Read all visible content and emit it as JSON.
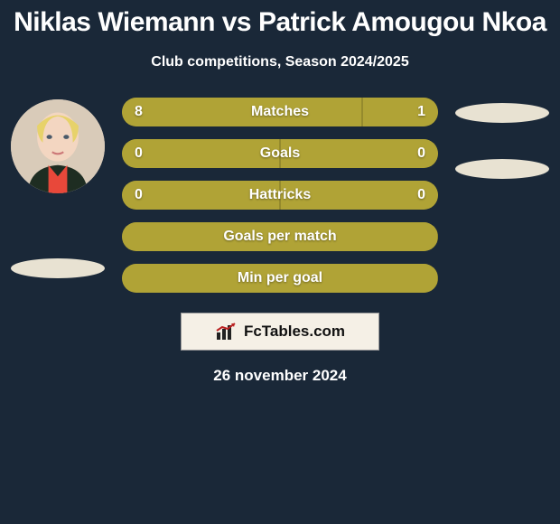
{
  "title": "Niklas Wiemann vs Patrick Amougou Nkoa",
  "subtitle": "Club competitions, Season 2024/2025",
  "date": "26 november 2024",
  "logo_text": "FcTables.com",
  "colors": {
    "background": "#1a2838",
    "bar_base": "#9a8d2a",
    "bar_fill": "#b0a336",
    "text": "#ffffff",
    "logo_bg": "#f5f0e6",
    "shadow": "#e8e2d2"
  },
  "bars": [
    {
      "label": "Matches",
      "left_value": "8",
      "right_value": "1",
      "left_pct": 76,
      "right_pct": 24,
      "show_values": true
    },
    {
      "label": "Goals",
      "left_value": "0",
      "right_value": "0",
      "left_pct": 50,
      "right_pct": 50,
      "show_values": true
    },
    {
      "label": "Hattricks",
      "left_value": "0",
      "right_value": "0",
      "left_pct": 50,
      "right_pct": 50,
      "show_values": true
    },
    {
      "label": "Goals per match",
      "left_value": "",
      "right_value": "",
      "left_pct": 100,
      "right_pct": 0,
      "show_values": false
    },
    {
      "label": "Min per goal",
      "left_value": "",
      "right_value": "",
      "left_pct": 100,
      "right_pct": 0,
      "show_values": false
    }
  ]
}
